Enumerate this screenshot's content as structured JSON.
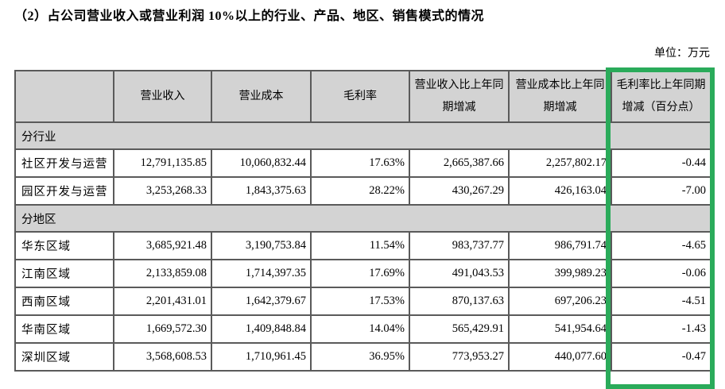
{
  "page": {
    "title": "（2）占公司营业收入或营业利润 10%以上的行业、产品、地区、销售模式的情况",
    "unit_label": "单位：万元"
  },
  "table": {
    "columns": [
      "",
      "营业收入",
      "营业成本",
      "毛利率",
      "营业收入比上年同期增减",
      "营业成本比上年同期增减",
      "毛利率比上年同期增减（百分点）"
    ],
    "sections": [
      {
        "label": "分行业",
        "rows": [
          {
            "label": "社区开发与运营",
            "values": [
              "12,791,135.85",
              "10,060,832.44",
              "17.63%",
              "2,665,387.66",
              "2,257,802.17",
              "-0.44"
            ]
          },
          {
            "label": "园区开发与运营",
            "values": [
              "3,253,268.33",
              "1,843,375.63",
              "28.22%",
              "430,267.29",
              "426,163.04",
              "-7.00"
            ]
          }
        ]
      },
      {
        "label": "分地区",
        "rows": [
          {
            "label": "华东区域",
            "values": [
              "3,685,921.48",
              "3,190,753.84",
              "11.54%",
              "983,737.77",
              "986,791.74",
              "-4.65"
            ]
          },
          {
            "label": "江南区域",
            "values": [
              "2,133,859.08",
              "1,714,397.35",
              "17.69%",
              "491,043.53",
              "399,989.23",
              "-0.06"
            ]
          },
          {
            "label": "西南区域",
            "values": [
              "2,201,431.01",
              "1,642,379.67",
              "17.53%",
              "870,137.63",
              "697,206.23",
              "-4.51"
            ]
          },
          {
            "label": "华南区域",
            "values": [
              "1,669,572.30",
              "1,409,848.84",
              "14.04%",
              "565,429.91",
              "541,954.64",
              "-1.43"
            ]
          },
          {
            "label": "深圳区域",
            "values": [
              "3,568,608.53",
              "1,710,961.45",
              "36.95%",
              "773,953.27",
              "440,077.60",
              "-0.47"
            ]
          }
        ]
      }
    ],
    "highlight": {
      "column_index": 6,
      "color": "#2aab5a"
    }
  }
}
